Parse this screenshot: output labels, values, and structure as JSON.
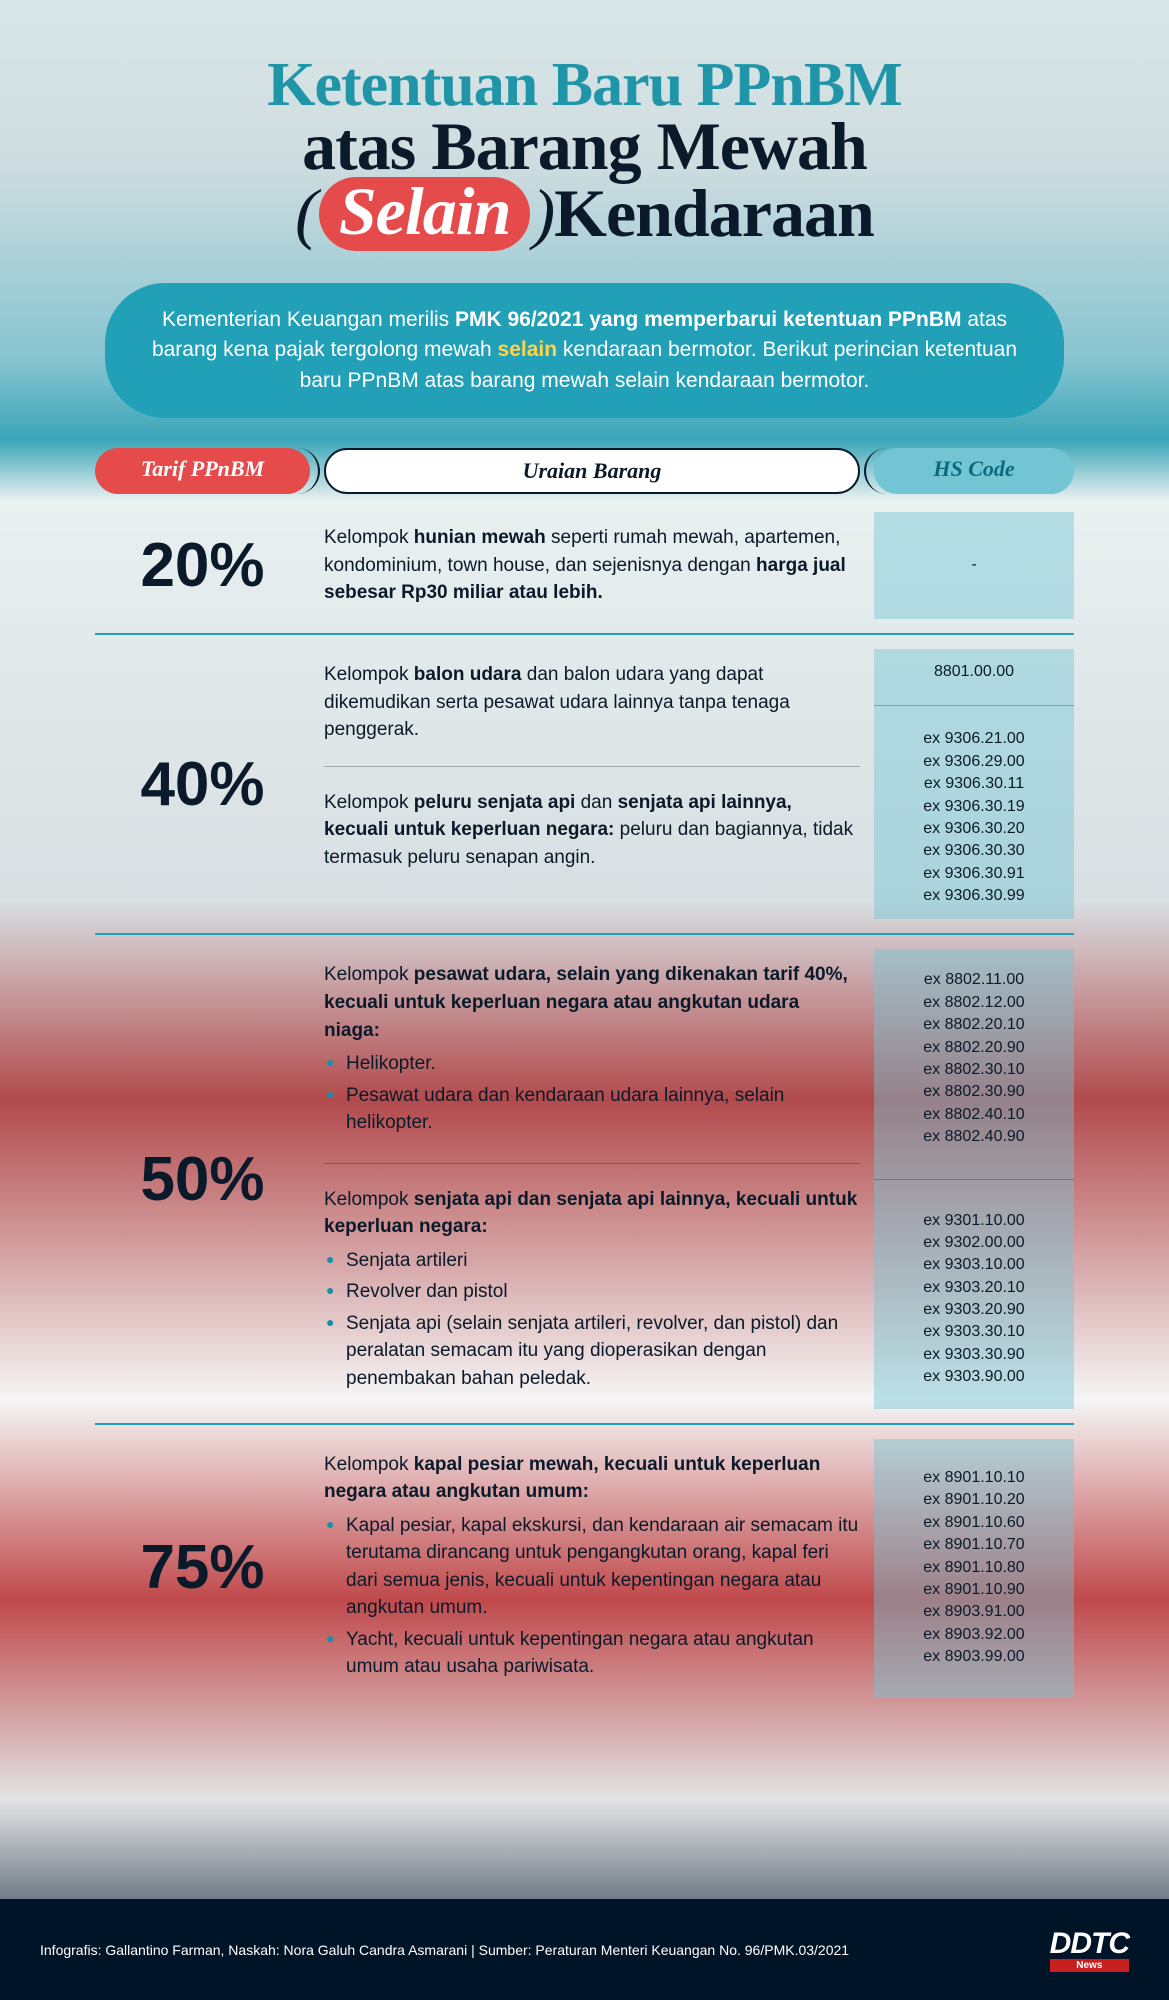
{
  "title_line1": "Ketentuan Baru PPnBM",
  "title_line2": "atas Barang Mewah",
  "title_highlight": "Selain",
  "title_line3_rest": "Kendaraan",
  "intro_html": "Kementerian Keuangan merilis <b>PMK 96/2021 yang memperbarui ketentuan PPnBM</b> atas barang kena pajak tergolong mewah <span class='yellow'>selain</span> kendaraan bermotor. Berikut perincian ketentuan baru PPnBM atas barang mewah selain kendaraan bermotor.",
  "headers": {
    "tarif": "Tarif PPnBM",
    "uraian": "Uraian Barang",
    "hs": "HS Code"
  },
  "rows": [
    {
      "rate": "20%",
      "items": [
        {
          "desc_html": "Kelompok <b>hunian mewah</b> seperti rumah mewah, apartemen, kondominium, town house, dan sejenisnya dengan <b>harga jual sebesar Rp30 miliar atau lebih.</b>",
          "hs": [
            "-"
          ]
        }
      ]
    },
    {
      "rate": "40%",
      "items": [
        {
          "desc_html": "Kelompok <b>balon udara</b> dan balon udara yang dapat dikemudikan serta pesawat udara lainnya tanpa tenaga penggerak.",
          "hs": [
            "8801.00.00"
          ]
        },
        {
          "desc_html": "Kelompok <b>peluru senjata api</b> dan <b>senjata api lainnya, kecuali untuk keperluan negara:</b> peluru dan bagiannya, tidak termasuk peluru senapan angin.",
          "hs": [
            "ex 9306.21.00",
            "ex 9306.29.00",
            "ex 9306.30.11",
            "ex 9306.30.19",
            "ex 9306.30.20",
            "ex 9306.30.30",
            "ex 9306.30.91",
            "ex 9306.30.99"
          ]
        }
      ]
    },
    {
      "rate": "50%",
      "items": [
        {
          "desc_html": "Kelompok <b>pesawat udara, selain yang dikenakan tarif 40%, kecuali untuk keperluan negara atau angkutan udara niaga:</b>",
          "bullets": [
            "Helikopter.",
            "Pesawat udara dan kendaraan udara lainnya, selain helikopter."
          ],
          "hs": [
            "ex 8802.11.00",
            "ex 8802.12.00",
            "ex 8802.20.10",
            "ex 8802.20.90",
            "ex 8802.30.10",
            "ex 8802.30.90",
            "ex 8802.40.10",
            "ex 8802.40.90"
          ]
        },
        {
          "desc_html": "Kelompok <b>senjata api dan senjata api lainnya, kecuali untuk keperluan negara:</b>",
          "bullets": [
            "Senjata artileri",
            "Revolver dan pistol",
            "<span>Senjata api (selain senjata artileri, revolver, dan pistol) dan peralatan semacam itu yang dioperasikan dengan penembakan bahan peledak.</span>"
          ],
          "hs": [
            "ex 9301.10.00",
            "ex 9302.00.00",
            "ex 9303.10.00",
            "ex 9303.20.10",
            "ex 9303.20.90",
            "ex 9303.30.10",
            "ex 9303.30.90",
            "ex 9303.90.00"
          ]
        }
      ]
    },
    {
      "rate": "75%",
      "items": [
        {
          "desc_html": "Kelompok <b>kapal pesiar mewah, kecuali untuk keperluan negara atau angkutan umum:</b>",
          "bullets": [
            "Kapal pesiar, kapal ekskursi, dan kendaraan air semacam itu terutama dirancang untuk pengangkutan orang, kapal feri dari semua jenis, kecuali untuk kepentingan negara atau angkutan umum.",
            "Yacht, kecuali untuk kepentingan negara atau angkutan umum atau usaha pariwisata."
          ],
          "hs": [
            "ex 8901.10.10",
            "ex 8901.10.20",
            "ex 8901.10.60",
            "ex 8901.10.70",
            "ex 8901.10.80",
            "ex 8901.10.90",
            "ex 8903.91.00",
            "ex 8903.92.00",
            "ex 8903.99.00"
          ]
        }
      ]
    }
  ],
  "footer_credit": "Infografis: Gallantino Farman, Naskah: Nora Galuh Candra Asmarani  |  Sumber: Peraturan Menteri Keuangan No. 96/PMK.03/2021",
  "logo_main": "DDTC",
  "logo_sub": "News",
  "colors": {
    "accent_red": "#e54b4b",
    "accent_teal": "#21a0b8",
    "strip_blue": "rgba(116,197,212,0.55)",
    "dark": "#0a1a2a"
  }
}
